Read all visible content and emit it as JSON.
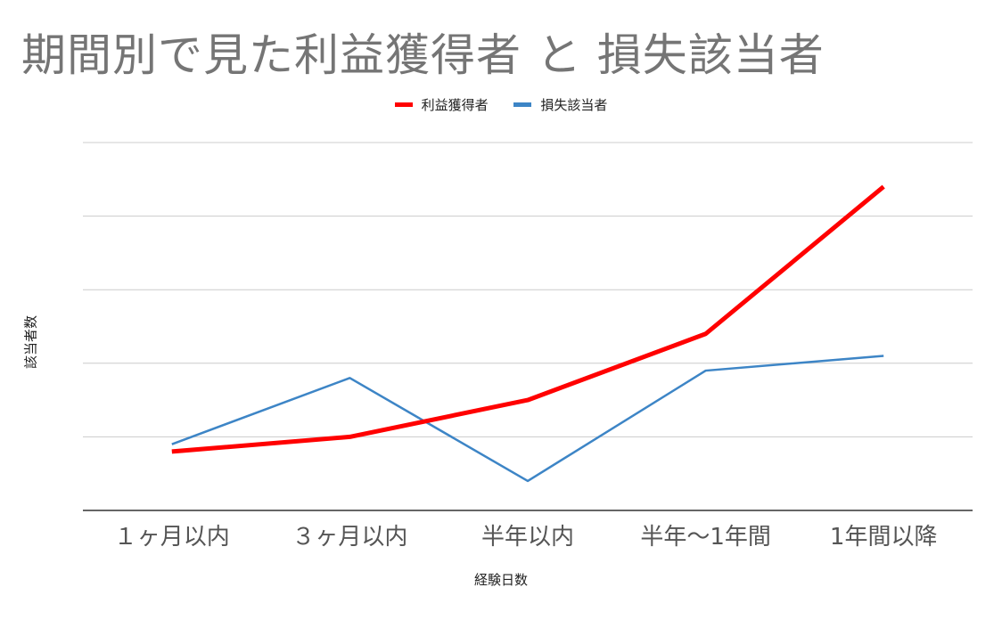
{
  "chart_data": {
    "type": "line",
    "title": "期間別で見た利益獲得者 と 損失該当者",
    "xlabel": "経験日数",
    "ylabel": "該当者数",
    "categories": [
      "１ヶ月以内",
      "３ヶ月以内",
      "半年以内",
      "半年〜1年間",
      "1年間以降"
    ],
    "series": [
      {
        "name": "利益獲得者",
        "color": "#ff0000",
        "values": [
          0.8,
          1.0,
          1.5,
          2.4,
          4.4
        ]
      },
      {
        "name": "損失該当者",
        "color": "#3d85c6",
        "values": [
          0.9,
          1.8,
          0.4,
          1.9,
          2.1
        ]
      }
    ],
    "ylim": [
      0,
      5
    ],
    "grid": true,
    "legend_position": "top-center",
    "y_tick_labels_visible": false
  }
}
